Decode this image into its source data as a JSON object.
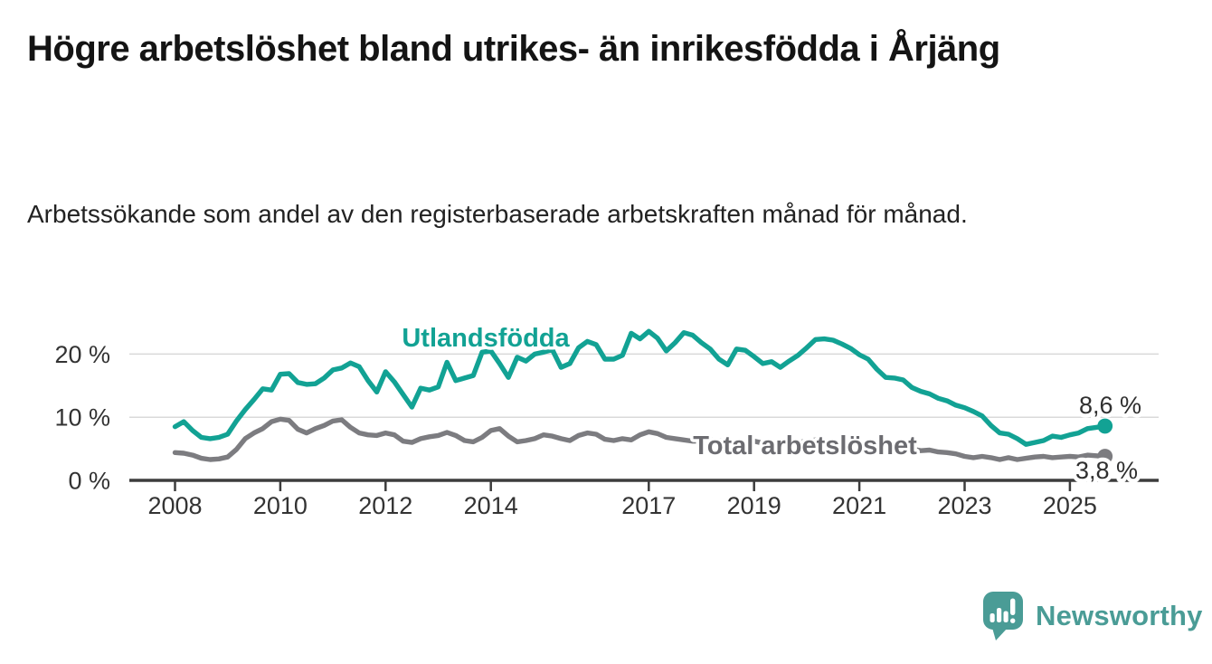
{
  "header": {
    "title": "Högre arbetslöshet bland utrikes- än inrikesfödda i Årjäng",
    "subtitle": "Arbetssökande som andel av den registerbaserade arbetskraften månad för månad."
  },
  "chart_data": {
    "type": "line",
    "x_start": 2008,
    "x_step": 0.166667,
    "x_ticks": [
      "2008",
      "2010",
      "2012",
      "2014",
      "2017",
      "2019",
      "2021",
      "2023",
      "2025"
    ],
    "x_tick_values": [
      2008,
      2010,
      2012,
      2014,
      2017,
      2019,
      2021,
      2023,
      2025
    ],
    "y_ticks": [
      {
        "value": 0,
        "label": "0 %"
      },
      {
        "value": 10,
        "label": "10 %"
      },
      {
        "value": 20,
        "label": "20 %"
      }
    ],
    "ylim": [
      0,
      25
    ],
    "grid": "horizontal-at-10-and-20",
    "legend_position": "inline-labels-on-lines",
    "series": [
      {
        "name": "Utlandsfödda",
        "color": "#12a294",
        "label_color": "#12a294",
        "end_label": "8,6 %",
        "end_value": 8.6,
        "end_dot": true,
        "values": [
          8.5,
          9.3,
          7.9,
          6.8,
          6.6,
          6.8,
          7.3,
          9.4,
          11.2,
          12.8,
          14.5,
          14.3,
          16.8,
          16.9,
          15.5,
          15.2,
          15.3,
          16.2,
          17.5,
          17.8,
          18.6,
          18,
          15.8,
          14,
          17.2,
          15.6,
          13.6,
          11.6,
          14.6,
          14.3,
          14.8,
          18.7,
          15.8,
          16.2,
          16.6,
          20.3,
          20.5,
          18.5,
          16.3,
          19.5,
          18.9,
          20,
          20.3,
          20.7,
          17.9,
          18.5,
          21,
          22,
          21.5,
          19.2,
          19.2,
          19.8,
          23.3,
          22.4,
          23.6,
          22.5,
          20.5,
          21.8,
          23.4,
          23,
          21.8,
          20.8,
          19.2,
          18.3,
          20.8,
          20.6,
          19.6,
          18.5,
          18.8,
          17.9,
          18.9,
          19.8,
          21,
          22.3,
          22.4,
          22.2,
          21.6,
          20.9,
          19.9,
          19.2,
          17.6,
          16.3,
          16.2,
          15.9,
          14.7,
          14.1,
          13.7,
          13,
          12.6,
          11.9,
          11.5,
          10.9,
          10.2,
          8.7,
          7.5,
          7.3,
          6.6,
          5.7,
          6,
          6.3,
          7,
          6.8,
          7.2,
          7.5,
          8.2,
          8.4,
          8.6
        ]
      },
      {
        "name": "Total arbetslöshet",
        "color": "#7c7c80",
        "label_color": "#6c6c71",
        "end_label": "3,8 %",
        "end_value": 3.8,
        "end_dot": true,
        "values": [
          4.4,
          4.3,
          4,
          3.5,
          3.3,
          3.4,
          3.7,
          4.9,
          6.6,
          7.5,
          8.2,
          9.3,
          9.7,
          9.5,
          8.1,
          7.5,
          8.2,
          8.7,
          9.4,
          9.6,
          8.4,
          7.5,
          7.2,
          7.1,
          7.5,
          7.2,
          6.2,
          6,
          6.6,
          6.9,
          7.1,
          7.6,
          7.1,
          6.3,
          6.1,
          6.8,
          7.9,
          8.2,
          7,
          6.1,
          6.3,
          6.6,
          7.2,
          7,
          6.6,
          6.3,
          7.1,
          7.5,
          7.3,
          6.5,
          6.3,
          6.6,
          6.4,
          7.2,
          7.7,
          7.4,
          6.8,
          6.6,
          6.4,
          6.2,
          6.2,
          6.4,
          6.3,
          6,
          6.2,
          6.1,
          6.2,
          5.9,
          5.8,
          5.7,
          5.9,
          6,
          6.2,
          6.4,
          6.3,
          6.1,
          6,
          5.9,
          5.8,
          5.6,
          5.5,
          5.3,
          5.2,
          5.1,
          5,
          4.7,
          4.8,
          4.5,
          4.4,
          4.2,
          3.8,
          3.6,
          3.8,
          3.6,
          3.3,
          3.6,
          3.3,
          3.5,
          3.7,
          3.8,
          3.6,
          3.7,
          3.8,
          3.7,
          4,
          3.9,
          3.8
        ]
      }
    ]
  },
  "branding": {
    "logo_text": "Newsworthy",
    "logo_icon": "newsworthy-chart-bubble-icon",
    "color": "#4a9c96"
  }
}
